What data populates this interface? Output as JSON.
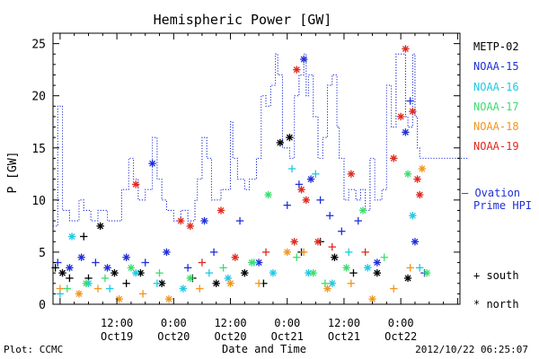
{
  "chart_data": {
    "type": "scatter",
    "title": "Hemispheric Power [GW]",
    "ylabel": "P [GW]",
    "xlabel": "Date and Time",
    "ylim": [
      0,
      26
    ],
    "yticks": [
      0,
      5,
      10,
      15,
      20,
      25
    ],
    "xlim": [
      "2012-10-18 22:30",
      "2012-10-22 12:30"
    ],
    "xticks": [
      {
        "time": "2012-10-19 12:00",
        "top": "12:00",
        "bottom": "Oct19"
      },
      {
        "time": "2012-10-20 00:00",
        "top": "0:00",
        "bottom": "Oct20"
      },
      {
        "time": "2012-10-20 12:00",
        "top": "12:00",
        "bottom": "Oct20"
      },
      {
        "time": "2012-10-21 00:00",
        "top": "0:00",
        "bottom": "Oct21"
      },
      {
        "time": "2012-10-21 12:00",
        "top": "12:00",
        "bottom": "Oct21"
      },
      {
        "time": "2012-10-22 00:00",
        "top": "0:00",
        "bottom": "Oct22"
      }
    ],
    "legend": {
      "position": "right",
      "entries": [
        {
          "name": "METP-02",
          "color": "#000000"
        },
        {
          "name": "NOAA-15",
          "color": "#1f2fd8"
        },
        {
          "name": "NOAA-16",
          "color": "#1ec8e6"
        },
        {
          "name": "NOAA-17",
          "color": "#3ddc6e"
        },
        {
          "name": "NOAA-18",
          "color": "#f0961e"
        },
        {
          "name": "NOAA-19",
          "color": "#e0281e"
        }
      ],
      "ovation_label_1": "— Ovation",
      "ovation_label_2": "Prime HPI",
      "ovation_color": "#1f2fd8",
      "marker_south": "+ south",
      "marker_north": "* north"
    },
    "ovation": {
      "name": "Ovation Prime HPI",
      "style": "dotted-step",
      "color": "#1f2fd8",
      "points": [
        [
          "2012-10-18 22:30",
          7.5
        ],
        [
          "2012-10-18 23:30",
          19
        ],
        [
          "2012-10-19 00:30",
          9
        ],
        [
          "2012-10-19 02:00",
          8
        ],
        [
          "2012-10-19 04:00",
          10
        ],
        [
          "2012-10-19 05:00",
          9
        ],
        [
          "2012-10-19 06:30",
          8
        ],
        [
          "2012-10-19 08:00",
          9
        ],
        [
          "2012-10-19 10:00",
          8
        ],
        [
          "2012-10-19 13:00",
          11
        ],
        [
          "2012-10-19 14:30",
          14
        ],
        [
          "2012-10-19 15:30",
          12
        ],
        [
          "2012-10-19 16:30",
          10
        ],
        [
          "2012-10-19 18:00",
          11
        ],
        [
          "2012-10-19 19:30",
          16
        ],
        [
          "2012-10-19 20:30",
          12
        ],
        [
          "2012-10-19 21:30",
          10
        ],
        [
          "2012-10-19 22:30",
          9
        ],
        [
          "2012-10-20 00:00",
          8
        ],
        [
          "2012-10-20 01:30",
          9
        ],
        [
          "2012-10-20 03:00",
          8
        ],
        [
          "2012-10-20 04:30",
          10
        ],
        [
          "2012-10-20 05:00",
          12
        ],
        [
          "2012-10-20 06:00",
          16
        ],
        [
          "2012-10-20 07:00",
          14
        ],
        [
          "2012-10-20 08:00",
          10
        ],
        [
          "2012-10-20 10:00",
          11
        ],
        [
          "2012-10-20 12:00",
          17.5
        ],
        [
          "2012-10-20 12:30",
          14
        ],
        [
          "2012-10-20 13:30",
          12
        ],
        [
          "2012-10-20 15:00",
          11
        ],
        [
          "2012-10-20 16:00",
          12
        ],
        [
          "2012-10-20 17:30",
          14
        ],
        [
          "2012-10-20 18:30",
          20
        ],
        [
          "2012-10-20 19:30",
          19
        ],
        [
          "2012-10-20 20:30",
          21
        ],
        [
          "2012-10-20 21:30",
          24
        ],
        [
          "2012-10-20 22:00",
          22
        ],
        [
          "2012-10-20 23:00",
          15
        ],
        [
          "2012-10-21 00:30",
          14
        ],
        [
          "2012-10-21 01:30",
          20
        ],
        [
          "2012-10-21 02:30",
          22
        ],
        [
          "2012-10-21 03:30",
          24
        ],
        [
          "2012-10-21 04:00",
          20
        ],
        [
          "2012-10-21 04:30",
          22
        ],
        [
          "2012-10-21 05:30",
          18
        ],
        [
          "2012-10-21 06:30",
          14
        ],
        [
          "2012-10-21 07:30",
          16
        ],
        [
          "2012-10-21 08:30",
          21
        ],
        [
          "2012-10-21 09:30",
          22
        ],
        [
          "2012-10-21 10:30",
          17
        ],
        [
          "2012-10-21 11:00",
          14
        ],
        [
          "2012-10-21 12:00",
          10
        ],
        [
          "2012-10-21 13:00",
          11
        ],
        [
          "2012-10-21 14:30",
          10
        ],
        [
          "2012-10-21 15:30",
          11
        ],
        [
          "2012-10-21 16:30",
          9
        ],
        [
          "2012-10-21 17:30",
          14
        ],
        [
          "2012-10-21 18:30",
          10
        ],
        [
          "2012-10-21 20:00",
          11
        ],
        [
          "2012-10-21 21:00",
          21
        ],
        [
          "2012-10-21 22:00",
          17
        ],
        [
          "2012-10-21 23:00",
          24
        ],
        [
          "2012-10-22 00:30",
          24
        ],
        [
          "2012-10-22 01:00",
          18
        ],
        [
          "2012-10-22 01:30",
          17
        ],
        [
          "2012-10-22 02:30",
          24
        ],
        [
          "2012-10-22 03:00",
          18
        ],
        [
          "2012-10-22 03:30",
          15
        ],
        [
          "2012-10-22 04:00",
          14
        ],
        [
          "2012-10-22 12:30",
          14
        ]
      ]
    },
    "series": [
      {
        "name": "METP-02",
        "color": "#000000",
        "points": [
          [
            "2012-10-18 23:00",
            3.5,
            "+"
          ],
          [
            "2012-10-19 00:30",
            3,
            "*"
          ],
          [
            "2012-10-19 02:00",
            2.5,
            "+"
          ],
          [
            "2012-10-19 05:00",
            6.5,
            "+"
          ],
          [
            "2012-10-19 08:30",
            7.5,
            "*"
          ],
          [
            "2012-10-19 06:00",
            2.5,
            "+"
          ],
          [
            "2012-10-19 11:30",
            3,
            "*"
          ],
          [
            "2012-10-19 14:00",
            2,
            "+"
          ],
          [
            "2012-10-19 17:00",
            3,
            "*"
          ],
          [
            "2012-10-19 21:30",
            2,
            "*"
          ],
          [
            "2012-10-20 04:00",
            2.5,
            "+"
          ],
          [
            "2012-10-20 09:00",
            2,
            "*"
          ],
          [
            "2012-10-20 15:00",
            3,
            "*"
          ],
          [
            "2012-10-20 19:00",
            2,
            "+"
          ],
          [
            "2012-10-20 22:30",
            15.5,
            "*"
          ],
          [
            "2012-10-21 00:30",
            16,
            "*"
          ],
          [
            "2012-10-21 03:00",
            5,
            "+"
          ],
          [
            "2012-10-21 07:00",
            6,
            "+"
          ],
          [
            "2012-10-21 10:00",
            4.5,
            "*"
          ],
          [
            "2012-10-21 14:00",
            3,
            "+"
          ],
          [
            "2012-10-21 19:00",
            3,
            "*"
          ],
          [
            "2012-10-22 01:30",
            2.5,
            "*"
          ]
        ]
      },
      {
        "name": "NOAA-15",
        "color": "#1f2fd8",
        "points": [
          [
            "2012-10-18 23:30",
            4,
            "+"
          ],
          [
            "2012-10-19 02:00",
            3.5,
            "*"
          ],
          [
            "2012-10-19 04:30",
            4.5,
            "*"
          ],
          [
            "2012-10-19 07:30",
            4,
            "+"
          ],
          [
            "2012-10-19 10:00",
            3.5,
            "*"
          ],
          [
            "2012-10-19 14:00",
            4.5,
            "*"
          ],
          [
            "2012-10-19 19:30",
            13.5,
            "*"
          ],
          [
            "2012-10-19 18:00",
            4,
            "+"
          ],
          [
            "2012-10-19 22:30",
            5,
            "*"
          ],
          [
            "2012-10-20 03:00",
            3.5,
            "+"
          ],
          [
            "2012-10-20 06:30",
            8,
            "*"
          ],
          [
            "2012-10-20 08:30",
            5,
            "+"
          ],
          [
            "2012-10-20 14:00",
            8,
            "+"
          ],
          [
            "2012-10-20 18:00",
            4,
            "*"
          ],
          [
            "2012-10-21 00:00",
            9.5,
            "+"
          ],
          [
            "2012-10-21 02:30",
            11.5,
            "+"
          ],
          [
            "2012-10-21 03:30",
            23.5,
            "*"
          ],
          [
            "2012-10-21 05:00",
            12,
            "*"
          ],
          [
            "2012-10-21 07:00",
            10,
            "+"
          ],
          [
            "2012-10-21 09:00",
            8.5,
            "+"
          ],
          [
            "2012-10-21 11:30",
            7,
            "+"
          ],
          [
            "2012-10-21 15:00",
            8,
            "+"
          ],
          [
            "2012-10-21 19:00",
            4,
            "*"
          ],
          [
            "2012-10-22 01:00",
            16.5,
            "*"
          ],
          [
            "2012-10-22 02:00",
            19.5,
            "+"
          ],
          [
            "2012-10-22 03:00",
            6,
            "*"
          ],
          [
            "2012-10-22 05:00",
            3,
            "+"
          ]
        ]
      },
      {
        "name": "NOAA-16",
        "color": "#1ec8e6",
        "points": [
          [
            "2012-10-19 00:00",
            1,
            "+"
          ],
          [
            "2012-10-19 02:30",
            6.5,
            "*"
          ],
          [
            "2012-10-19 06:00",
            2,
            "*"
          ],
          [
            "2012-10-19 10:30",
            1.5,
            "+"
          ],
          [
            "2012-10-19 16:00",
            3,
            "*"
          ],
          [
            "2012-10-19 20:30",
            2,
            "+"
          ],
          [
            "2012-10-20 02:00",
            1.5,
            "*"
          ],
          [
            "2012-10-20 07:30",
            3,
            "+"
          ],
          [
            "2012-10-20 11:30",
            2.5,
            "*"
          ],
          [
            "2012-10-20 17:00",
            4,
            "+"
          ],
          [
            "2012-10-20 21:00",
            3,
            "*"
          ],
          [
            "2012-10-21 01:00",
            13,
            "+"
          ],
          [
            "2012-10-21 04:30",
            3,
            "*"
          ],
          [
            "2012-10-21 06:00",
            12.5,
            "+"
          ],
          [
            "2012-10-21 09:30",
            2,
            "*"
          ],
          [
            "2012-10-21 13:00",
            5,
            "+"
          ],
          [
            "2012-10-21 17:00",
            3.5,
            "*"
          ],
          [
            "2012-10-22 02:30",
            8.5,
            "*"
          ],
          [
            "2012-10-22 04:00",
            3.5,
            "+"
          ]
        ]
      },
      {
        "name": "NOAA-17",
        "color": "#3ddc6e",
        "points": [
          [
            "2012-10-19 01:30",
            1.5,
            "+"
          ],
          [
            "2012-10-19 05:30",
            2,
            "*"
          ],
          [
            "2012-10-19 09:30",
            2.5,
            "+"
          ],
          [
            "2012-10-19 15:00",
            3.5,
            "*"
          ],
          [
            "2012-10-19 21:00",
            3,
            "+"
          ],
          [
            "2012-10-20 03:30",
            2.5,
            "*"
          ],
          [
            "2012-10-20 10:30",
            3.5,
            "+"
          ],
          [
            "2012-10-20 16:30",
            4,
            "*"
          ],
          [
            "2012-10-20 20:00",
            10.5,
            "*"
          ],
          [
            "2012-10-21 02:00",
            4.5,
            "+"
          ],
          [
            "2012-10-21 05:30",
            3,
            "*"
          ],
          [
            "2012-10-21 08:00",
            2,
            "+"
          ],
          [
            "2012-10-21 12:30",
            3.5,
            "*"
          ],
          [
            "2012-10-21 16:00",
            9,
            "*"
          ],
          [
            "2012-10-21 20:30",
            4.5,
            "+"
          ],
          [
            "2012-10-22 01:30",
            12.5,
            "*"
          ],
          [
            "2012-10-22 05:30",
            3,
            "*"
          ]
        ]
      },
      {
        "name": "NOAA-18",
        "color": "#f0961e",
        "points": [
          [
            "2012-10-19 00:00",
            1.5,
            "+"
          ],
          [
            "2012-10-19 04:00",
            1,
            "*"
          ],
          [
            "2012-10-19 08:00",
            1.5,
            "+"
          ],
          [
            "2012-10-19 12:30",
            0.5,
            "*"
          ],
          [
            "2012-10-19 17:30",
            1,
            "+"
          ],
          [
            "2012-10-19 23:00",
            0.5,
            "*"
          ],
          [
            "2012-10-20 05:30",
            1.5,
            "+"
          ],
          [
            "2012-10-20 12:00",
            2,
            "*"
          ],
          [
            "2012-10-20 18:00",
            2,
            "+"
          ],
          [
            "2012-10-21 00:00",
            5,
            "*"
          ],
          [
            "2012-10-21 03:30",
            5,
            "+"
          ],
          [
            "2012-10-21 08:30",
            1.5,
            "*"
          ],
          [
            "2012-10-21 13:30",
            2,
            "+"
          ],
          [
            "2012-10-21 18:00",
            0.5,
            "*"
          ],
          [
            "2012-10-21 22:30",
            1.5,
            "+"
          ],
          [
            "2012-10-22 02:00",
            3.5,
            "+"
          ],
          [
            "2012-10-22 04:30",
            13,
            "*"
          ]
        ]
      },
      {
        "name": "NOAA-19",
        "color": "#e0281e",
        "points": [
          [
            "2012-10-19 16:00",
            11.5,
            "*"
          ],
          [
            "2012-10-20 01:30",
            8,
            "*"
          ],
          [
            "2012-10-20 03:30",
            7.5,
            "*"
          ],
          [
            "2012-10-20 10:00",
            9,
            "*"
          ],
          [
            "2012-10-20 06:00",
            4,
            "+"
          ],
          [
            "2012-10-20 13:00",
            4.5,
            "*"
          ],
          [
            "2012-10-20 19:30",
            5,
            "+"
          ],
          [
            "2012-10-21 01:30",
            6,
            "*"
          ],
          [
            "2012-10-21 02:00",
            22.5,
            "*"
          ],
          [
            "2012-10-21 03:00",
            11,
            "*"
          ],
          [
            "2012-10-21 04:00",
            10,
            "*"
          ],
          [
            "2012-10-21 06:30",
            6,
            "*"
          ],
          [
            "2012-10-21 09:30",
            5.5,
            "+"
          ],
          [
            "2012-10-21 13:30",
            12.5,
            "*"
          ],
          [
            "2012-10-21 16:30",
            5,
            "+"
          ],
          [
            "2012-10-21 22:30",
            14,
            "*"
          ],
          [
            "2012-10-22 00:00",
            18,
            "*"
          ],
          [
            "2012-10-22 01:00",
            24.5,
            "*"
          ],
          [
            "2012-10-22 02:30",
            18.5,
            "*"
          ],
          [
            "2012-10-22 04:00",
            10.5,
            "*"
          ],
          [
            "2012-10-22 03:30",
            12,
            "*"
          ]
        ]
      }
    ]
  },
  "footer": {
    "plot_credit": "Plot: CCMC",
    "timestamp": "2012/10/22 06:25:07"
  }
}
